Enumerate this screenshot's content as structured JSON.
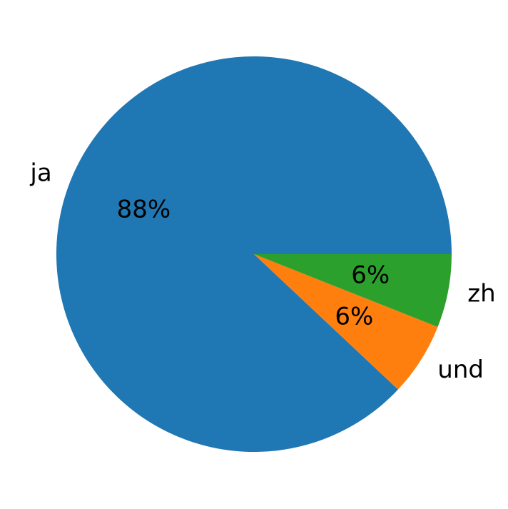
{
  "chart_data": {
    "type": "pie",
    "categories": [
      "ja",
      "und",
      "zh"
    ],
    "values": [
      88,
      6,
      6
    ],
    "value_labels": [
      "88%",
      "6%",
      "6%"
    ],
    "colors": [
      "#1f77b4",
      "#ff7f0e",
      "#2ca02c"
    ]
  }
}
